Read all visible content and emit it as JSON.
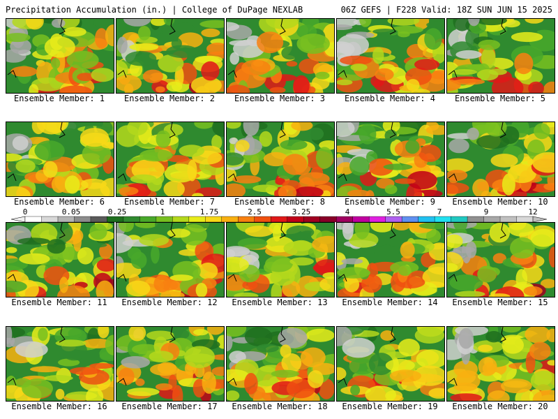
{
  "header": {
    "title_left": "Precipitation Accumulation (in.) | College of DuPage NEXLAB",
    "title_right": "06Z GEFS | F228 Valid: 18Z SUN JUN 15 2025"
  },
  "panel_label_prefix": "Ensemble Member: ",
  "members": [
    {
      "id": 1,
      "label": "Ensemble Member: 1"
    },
    {
      "id": 2,
      "label": "Ensemble Member: 2"
    },
    {
      "id": 3,
      "label": "Ensemble Member: 3"
    },
    {
      "id": 4,
      "label": "Ensemble Member: 4"
    },
    {
      "id": 5,
      "label": "Ensemble Member: 5"
    },
    {
      "id": 6,
      "label": "Ensemble Member: 6"
    },
    {
      "id": 7,
      "label": "Ensemble Member: 7"
    },
    {
      "id": 8,
      "label": "Ensemble Member: 8"
    },
    {
      "id": 9,
      "label": "Ensemble Member: 9"
    },
    {
      "id": 10,
      "label": "Ensemble Member: 10"
    },
    {
      "id": 11,
      "label": "Ensemble Member: 11"
    },
    {
      "id": 12,
      "label": "Ensemble Member: 12"
    },
    {
      "id": 13,
      "label": "Ensemble Member: 13"
    },
    {
      "id": 14,
      "label": "Ensemble Member: 14"
    },
    {
      "id": 15,
      "label": "Ensemble Member: 15"
    },
    {
      "id": 16,
      "label": "Ensemble Member: 16"
    },
    {
      "id": 17,
      "label": "Ensemble Member: 17"
    },
    {
      "id": 18,
      "label": "Ensemble Member: 18"
    },
    {
      "id": 19,
      "label": "Ensemble Member: 19"
    },
    {
      "id": 20,
      "label": "Ensemble Member: 20"
    }
  ],
  "colorbar": {
    "tick_labels": [
      "0",
      "0.05",
      "0.25",
      "1",
      "1.75",
      "2.5",
      "3.25",
      "4",
      "5.5",
      "7",
      "9",
      "12"
    ],
    "colors": [
      "#ffffff",
      "#d8d8d8",
      "#b4b4b4",
      "#8c8c8c",
      "#5a5a5a",
      "#1e6e1e",
      "#2f8a2f",
      "#48a82a",
      "#78c020",
      "#b4d81c",
      "#e8ec1a",
      "#f8d818",
      "#f8b010",
      "#f88010",
      "#f05010",
      "#e01818",
      "#c00018",
      "#a00020",
      "#880028",
      "#a00060",
      "#c000a0",
      "#e020e0",
      "#b060f0",
      "#6090f0",
      "#20c0f0",
      "#20e0f0",
      "#20c8c0",
      "#909090",
      "#a8a8a8",
      "#c0c0c0",
      "#d8d8d8"
    ]
  }
}
